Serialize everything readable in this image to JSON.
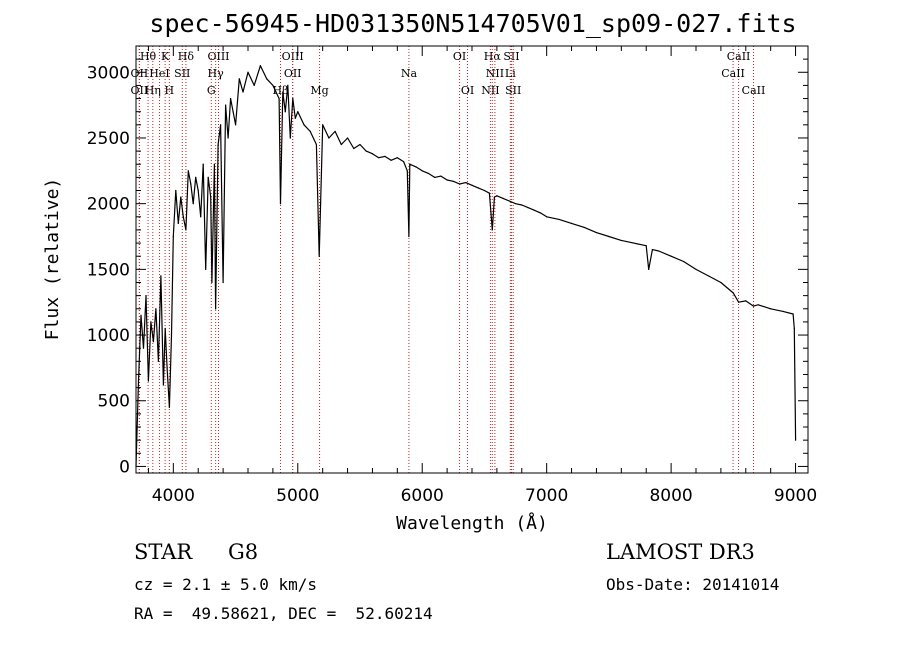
{
  "chart_data": {
    "type": "line",
    "title": "spec-56945-HD031350N514705V01_sp09-027.fits",
    "xlabel": "Wavelength (Å)",
    "ylabel": "Flux (relative)",
    "xlim": [
      3700,
      9100
    ],
    "ylim": [
      -50,
      3200
    ],
    "x_ticks": [
      4000,
      5000,
      6000,
      7000,
      8000,
      9000
    ],
    "y_ticks": [
      0,
      500,
      1000,
      1500,
      2000,
      2500,
      3000
    ],
    "series": [
      {
        "name": "flux",
        "x": [
          3700,
          3720,
          3740,
          3760,
          3780,
          3800,
          3820,
          3840,
          3860,
          3880,
          3900,
          3920,
          3935,
          3950,
          3968,
          3985,
          4000,
          4020,
          4040,
          4060,
          4080,
          4101,
          4120,
          4140,
          4160,
          4180,
          4200,
          4220,
          4240,
          4260,
          4280,
          4300,
          4310,
          4330,
          4340,
          4360,
          4380,
          4400,
          4420,
          4440,
          4460,
          4480,
          4500,
          4530,
          4560,
          4600,
          4650,
          4700,
          4750,
          4800,
          4850,
          4861,
          4880,
          4900,
          4920,
          4940,
          4960,
          4980,
          5000,
          5050,
          5100,
          5150,
          5172,
          5183,
          5200,
          5250,
          5300,
          5350,
          5400,
          5450,
          5500,
          5550,
          5600,
          5650,
          5700,
          5750,
          5800,
          5850,
          5880,
          5893,
          5900,
          5950,
          6000,
          6050,
          6100,
          6150,
          6200,
          6250,
          6300,
          6350,
          6400,
          6450,
          6500,
          6540,
          6563,
          6580,
          6600,
          6650,
          6700,
          6750,
          6800,
          6850,
          6900,
          6950,
          7000,
          7100,
          7200,
          7300,
          7400,
          7500,
          7600,
          7700,
          7800,
          7820,
          7850,
          7900,
          8000,
          8100,
          8200,
          8300,
          8400,
          8500,
          8542,
          8600,
          8662,
          8700,
          8800,
          8900,
          8980,
          8990,
          9000
        ],
        "values": [
          0,
          650,
          1150,
          900,
          1300,
          650,
          1100,
          950,
          1200,
          800,
          1450,
          620,
          1050,
          750,
          450,
          1000,
          1750,
          2100,
          1850,
          2050,
          1900,
          1800,
          2250,
          2150,
          2000,
          2200,
          2100,
          1900,
          2300,
          1500,
          2200,
          2050,
          1400,
          2300,
          1200,
          2450,
          2600,
          1400,
          2750,
          2500,
          2800,
          2700,
          2600,
          2950,
          2850,
          3000,
          2900,
          3050,
          2950,
          2900,
          2800,
          2000,
          2850,
          2700,
          2900,
          2500,
          2800,
          2650,
          2700,
          2600,
          2550,
          2450,
          1600,
          2000,
          2600,
          2500,
          2550,
          2450,
          2500,
          2420,
          2450,
          2400,
          2380,
          2350,
          2360,
          2330,
          2350,
          2320,
          2250,
          1750,
          2300,
          2280,
          2250,
          2230,
          2200,
          2210,
          2180,
          2170,
          2150,
          2160,
          2140,
          2120,
          2100,
          2080,
          1800,
          2050,
          2060,
          2040,
          2020,
          2000,
          1990,
          1970,
          1950,
          1930,
          1900,
          1880,
          1850,
          1820,
          1780,
          1750,
          1720,
          1700,
          1680,
          1500,
          1650,
          1640,
          1600,
          1560,
          1500,
          1450,
          1400,
          1320,
          1250,
          1260,
          1220,
          1230,
          1200,
          1180,
          1160,
          1050,
          200
        ]
      }
    ],
    "lines": [
      {
        "name": "Hθ",
        "wave": 3797,
        "row": 0
      },
      {
        "name": "OII",
        "wave": 3727,
        "row": 1
      },
      {
        "name": "OII",
        "wave": 3727,
        "row": 2
      },
      {
        "name": "HeI",
        "wave": 3889,
        "row": 1
      },
      {
        "name": "Hη",
        "wave": 3835,
        "row": 2
      },
      {
        "name": "K",
        "wave": 3934,
        "row": 0
      },
      {
        "name": "SII",
        "wave": 4072,
        "row": 1
      },
      {
        "name": "H",
        "wave": 3968,
        "row": 2
      },
      {
        "name": "Hδ",
        "wave": 4101,
        "row": 0
      },
      {
        "name": "OIII",
        "wave": 4363,
        "row": 0
      },
      {
        "name": "Hγ",
        "wave": 4340,
        "row": 1
      },
      {
        "name": "G",
        "wave": 4305,
        "row": 2
      },
      {
        "name": "OIII",
        "wave": 4959,
        "row": 0
      },
      {
        "name": "OII",
        "wave": 4959,
        "row": 1
      },
      {
        "name": "Hβ",
        "wave": 4861,
        "row": 2
      },
      {
        "name": "Mg",
        "wave": 5175,
        "row": 2
      },
      {
        "name": "Na",
        "wave": 5893,
        "row": 1
      },
      {
        "name": "OI",
        "wave": 6300,
        "row": 0
      },
      {
        "name": "OI",
        "wave": 6364,
        "row": 2
      },
      {
        "name": "Hα",
        "wave": 6563,
        "row": 0
      },
      {
        "name": "SII",
        "wave": 6717,
        "row": 0
      },
      {
        "name": "NII",
        "wave": 6584,
        "row": 1
      },
      {
        "name": "Li",
        "wave": 6708,
        "row": 1
      },
      {
        "name": "NII",
        "wave": 6548,
        "row": 2
      },
      {
        "name": "SII",
        "wave": 6731,
        "row": 2
      },
      {
        "name": "CaII",
        "wave": 8542,
        "row": 0
      },
      {
        "name": "CaII",
        "wave": 8498,
        "row": 1
      },
      {
        "name": "CaII",
        "wave": 8662,
        "row": 2
      }
    ]
  },
  "footer": {
    "object_type": "STAR",
    "subclass": "G8",
    "survey": "LAMOST DR3",
    "cz": "cz = 2.1 ± 5.0 km/s",
    "obs_date": "Obs-Date: 20141014",
    "coords": "RA =  49.58621, DEC =  52.60214"
  },
  "colors": {
    "spectrum": "#000000",
    "line_marker": "#cc2222"
  }
}
